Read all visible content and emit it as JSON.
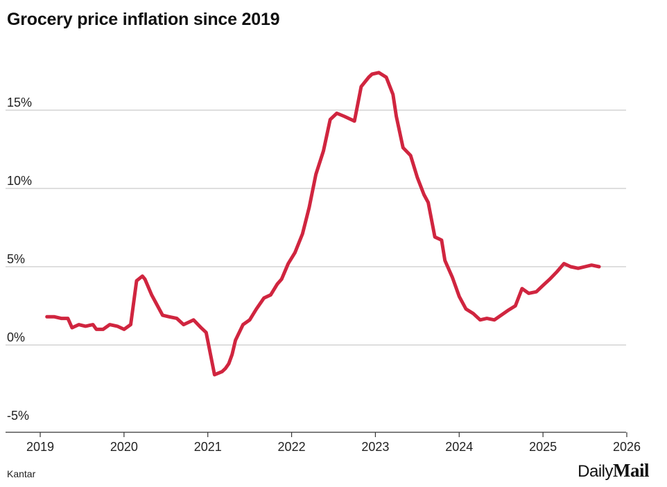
{
  "chart_data": {
    "type": "line",
    "title": "Grocery price inflation since 2019",
    "xlabel": "",
    "ylabel": "",
    "xlim": [
      2019,
      2026
    ],
    "ylim": [
      -5,
      17.5
    ],
    "y_ticks": [
      -5,
      0,
      5,
      10,
      15
    ],
    "y_tick_labels": [
      "-5%",
      "0%",
      "5%",
      "10%",
      "15%"
    ],
    "x_ticks": [
      2019,
      2020,
      2021,
      2022,
      2023,
      2024,
      2025,
      2026
    ],
    "x_tick_labels": [
      "2019",
      "2020",
      "2021",
      "2022",
      "2023",
      "2024",
      "2025",
      "2026"
    ],
    "grid": true,
    "line_color": "#d0253f",
    "series": [
      {
        "name": "Grocery price inflation",
        "x": [
          2019.08,
          2019.17,
          2019.25,
          2019.33,
          2019.38,
          2019.46,
          2019.54,
          2019.63,
          2019.67,
          2019.75,
          2019.83,
          2019.92,
          2020.0,
          2020.08,
          2020.15,
          2020.22,
          2020.25,
          2020.29,
          2020.33,
          2020.38,
          2020.46,
          2020.54,
          2020.63,
          2020.71,
          2020.79,
          2020.83,
          2020.92,
          2020.98,
          2021.08,
          2021.17,
          2021.21,
          2021.25,
          2021.29,
          2021.33,
          2021.42,
          2021.5,
          2021.58,
          2021.67,
          2021.75,
          2021.83,
          2021.88,
          2021.96,
          2022.04,
          2022.13,
          2022.21,
          2022.29,
          2022.38,
          2022.46,
          2022.54,
          2022.63,
          2022.75,
          2022.83,
          2022.92,
          2022.96,
          2023.04,
          2023.13,
          2023.21,
          2023.25,
          2023.33,
          2023.42,
          2023.5,
          2023.58,
          2023.63,
          2023.71,
          2023.79,
          2023.83,
          2023.92,
          2024.0,
          2024.08,
          2024.17,
          2024.25,
          2024.33,
          2024.42,
          2024.5,
          2024.58,
          2024.67,
          2024.75,
          2024.83,
          2024.92,
          2025.0,
          2025.08,
          2025.17,
          2025.25,
          2025.33,
          2025.42,
          2025.5,
          2025.58,
          2025.67
        ],
        "values": [
          1.8,
          1.8,
          1.7,
          1.7,
          1.1,
          1.3,
          1.2,
          1.3,
          1.0,
          1.0,
          1.3,
          1.2,
          1.0,
          1.3,
          4.1,
          4.4,
          4.2,
          3.7,
          3.2,
          2.7,
          1.9,
          1.8,
          1.7,
          1.3,
          1.5,
          1.6,
          1.1,
          0.8,
          -1.9,
          -1.7,
          -1.5,
          -1.2,
          -0.6,
          0.3,
          1.3,
          1.6,
          2.3,
          3.0,
          3.2,
          3.9,
          4.2,
          5.2,
          5.9,
          7.1,
          8.8,
          10.9,
          12.4,
          14.4,
          14.8,
          14.6,
          14.3,
          16.5,
          17.1,
          17.3,
          17.4,
          17.1,
          16.0,
          14.6,
          12.6,
          12.1,
          10.7,
          9.6,
          9.1,
          6.9,
          6.7,
          5.4,
          4.3,
          3.1,
          2.3,
          2.0,
          1.6,
          1.7,
          1.6,
          1.9,
          2.2,
          2.5,
          3.6,
          3.3,
          3.4,
          3.8,
          4.2,
          4.7,
          5.2,
          5.0,
          4.9,
          5.0,
          5.1,
          5.0
        ]
      }
    ]
  },
  "source": "Kantar",
  "brand": {
    "part1": "Daily",
    "part2": "Mail"
  }
}
